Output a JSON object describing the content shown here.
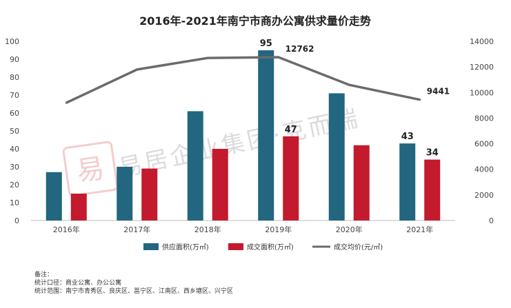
{
  "chart_data": {
    "type": "bar",
    "title": "2016年-2021年南宁市商办公寓供求量价走势",
    "categories": [
      "2016年",
      "2017年",
      "2018年",
      "2019年",
      "2020年",
      "2021年"
    ],
    "series": [
      {
        "name": "供应面积(万㎡)",
        "kind": "bar",
        "axis": "left",
        "color": "#226680",
        "values": [
          27,
          30,
          61,
          95,
          71,
          43
        ],
        "data_labels": [
          null,
          null,
          null,
          "95",
          null,
          "43"
        ]
      },
      {
        "name": "成交面积(万㎡)",
        "kind": "bar",
        "axis": "left",
        "color": "#c31a2e",
        "values": [
          15,
          29,
          40,
          47,
          42,
          34
        ],
        "data_labels": [
          null,
          null,
          null,
          "47",
          null,
          "34"
        ]
      },
      {
        "name": "成交均价(元/㎡)",
        "kind": "line",
        "axis": "right",
        "color": "#6b6b6b",
        "values": [
          9200,
          11800,
          12700,
          12762,
          10600,
          9441
        ],
        "data_labels": [
          null,
          null,
          null,
          "12762",
          null,
          "9441"
        ]
      }
    ],
    "y_left": {
      "min": 0,
      "max": 100,
      "step": 10,
      "ticks": [
        "0",
        "10",
        "20",
        "30",
        "40",
        "50",
        "60",
        "70",
        "80",
        "90",
        "100"
      ]
    },
    "y_right": {
      "min": 0,
      "max": 14000,
      "step": 2000,
      "ticks": [
        "0",
        "2000",
        "4000",
        "6000",
        "8000",
        "10000",
        "12000",
        "14000"
      ]
    },
    "legend_position": "bottom",
    "grid": false
  },
  "watermark": {
    "seal": "易",
    "text": "易居企业集团·克而瑞"
  },
  "notes": {
    "heading": "备注：",
    "line1": "统计口径：商业公寓、办公公寓",
    "line2": "统计范围：南宁市青秀区、良庆区、邕宁区、江南区、西乡塘区、兴宁区"
  }
}
